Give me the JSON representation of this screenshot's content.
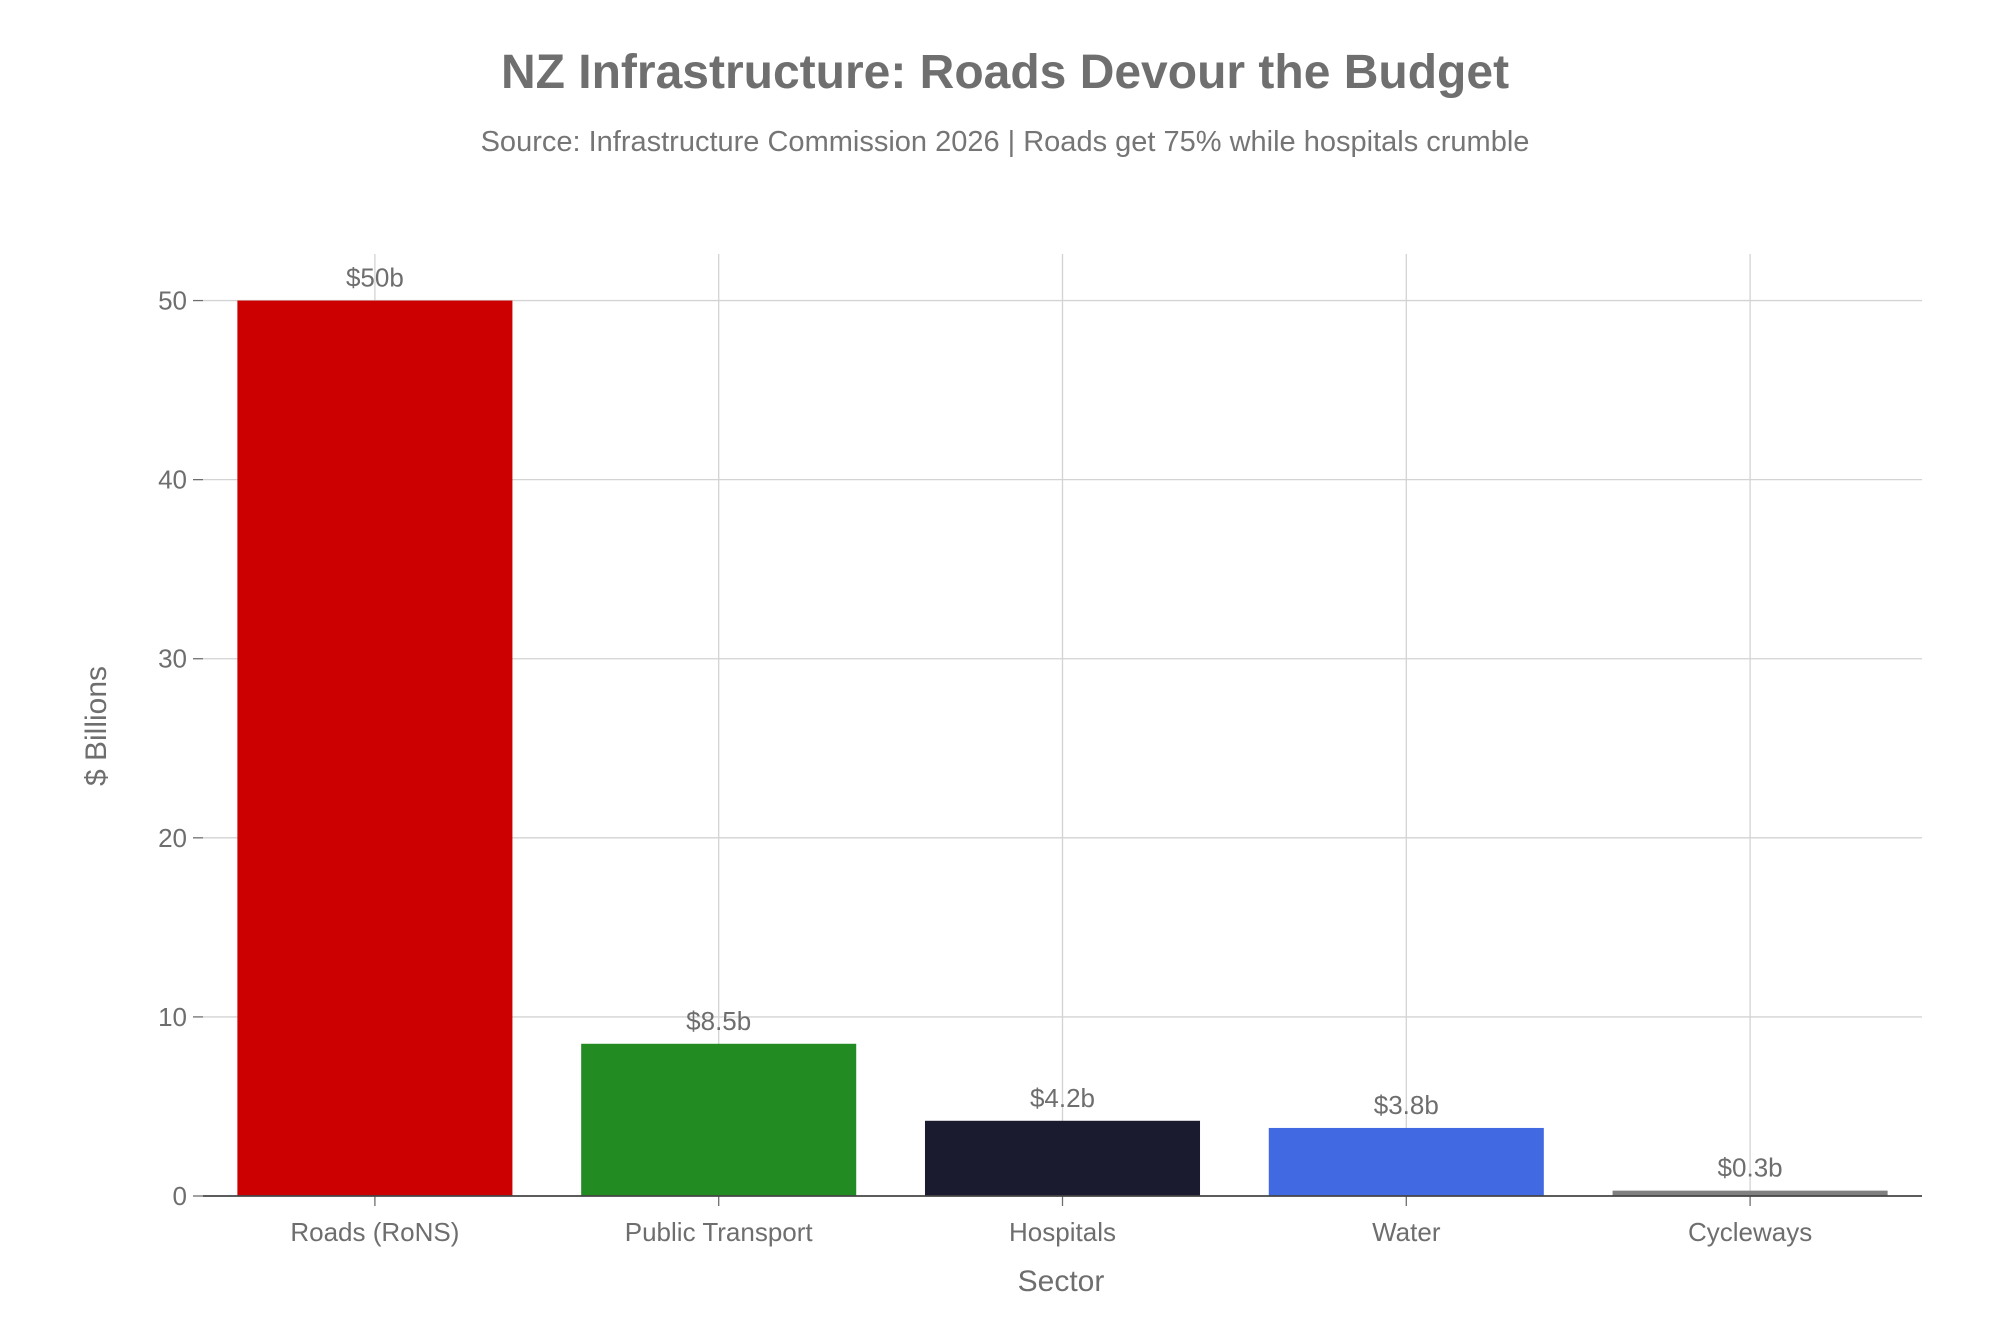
{
  "chart_data": {
    "type": "bar",
    "title": "NZ Infrastructure: Roads Devour the Budget",
    "subtitle": "Source: Infrastructure Commission 2026 | Roads get 75% while hospitals crumble",
    "xlabel": "Sector",
    "ylabel": "$ Billions",
    "categories": [
      "Roads (RoNS)",
      "Public Transport",
      "Hospitals",
      "Water",
      "Cycleways"
    ],
    "values": [
      50,
      8.5,
      4.2,
      3.8,
      0.3
    ],
    "data_labels": [
      "$50b",
      "$8.5b",
      "$4.2b",
      "$3.8b",
      "$0.3b"
    ],
    "colors": [
      "#cc0000",
      "#228b22",
      "#1b1b2f",
      "#4169e1",
      "#808080"
    ],
    "ylim": [
      0,
      52.6
    ],
    "yticks": [
      0,
      10,
      20,
      30,
      40,
      50
    ],
    "grid": true,
    "legend": "none"
  }
}
